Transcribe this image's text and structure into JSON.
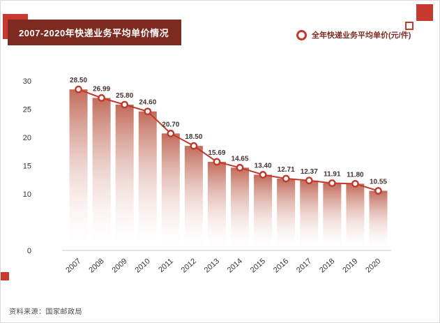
{
  "page": {
    "title": "2007-2020年快递业务平均单价情况",
    "source": "资料来源：国家邮政局"
  },
  "legend": {
    "label": "全年快递业务平均单价(元/件)"
  },
  "colors": {
    "accent": "#c8392f",
    "banner_bg": "#7d2b21",
    "line": "#c0392b",
    "bar_gradient_top": "#b44a35",
    "axis_text": "#333333",
    "value_label": "#46342e"
  },
  "chart_data": {
    "type": "line",
    "title": "2007-2020年快递业务平均单价情况",
    "series_name": "全年快递业务平均单价(元/件)",
    "categories": [
      "2007",
      "2008",
      "2009",
      "2010",
      "2011",
      "2012",
      "2013",
      "2014",
      "2015",
      "2016",
      "2017",
      "2018",
      "2019",
      "2020"
    ],
    "values": [
      28.5,
      26.99,
      25.8,
      24.6,
      20.7,
      18.5,
      15.69,
      14.65,
      13.4,
      12.71,
      12.37,
      11.91,
      11.8,
      10.55
    ],
    "value_labels": [
      "28.50",
      "26.99",
      "25.80",
      "24.60",
      "20.70",
      "18.50",
      "15.69",
      "14.65",
      "13.40",
      "12.71",
      "12.37",
      "11.91",
      "11.80",
      "10.55"
    ],
    "xlabel": "",
    "ylabel": "",
    "ylim": [
      0,
      30
    ],
    "y_ticks": [
      0,
      10,
      15,
      20,
      25,
      30
    ],
    "grid": false,
    "legend_position": "top-right",
    "marker": "open-circle",
    "fill": "gradient-bars-under-line"
  }
}
